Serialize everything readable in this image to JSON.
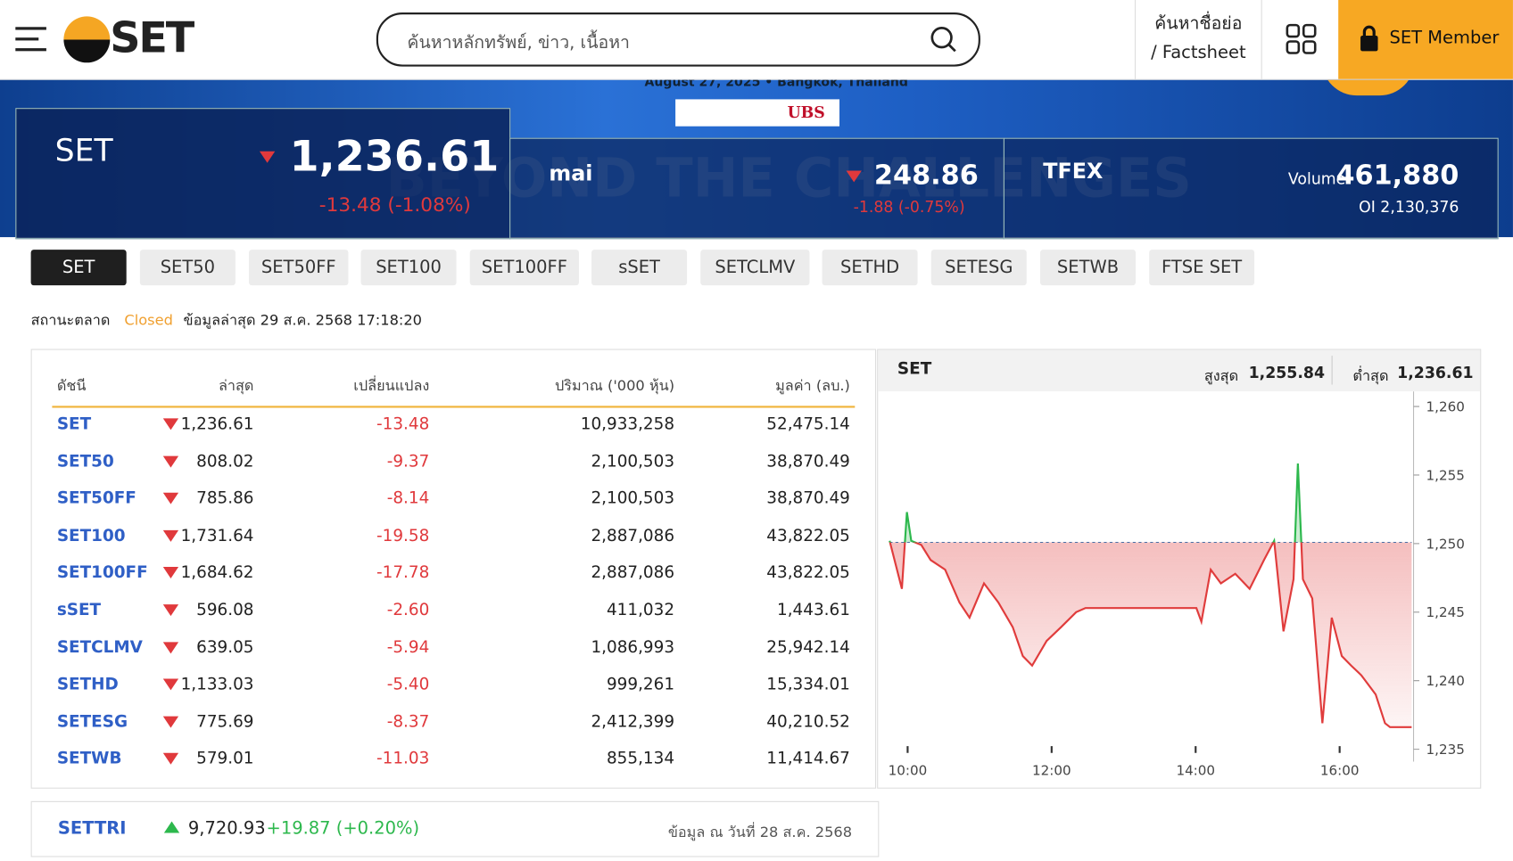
{
  "header": {
    "logo": "SET",
    "search_placeholder": "ค้นหาหลักทรัพย์, ข่าว, เนื้อหา",
    "factsheet_line1": "ค้นหาชื่อย่อ",
    "factsheet_line2": "/ Factsheet",
    "member": "SET Member"
  },
  "banner": {
    "event_date": "August 27, 2025 • Bangkok, Thailand",
    "sponsor": "UBS",
    "theme": "BEYOND THE CHALLENGES"
  },
  "indices_summary": {
    "set": {
      "name": "SET",
      "value": "1,236.61",
      "change": "-13.48 (-1.08%)"
    },
    "mai": {
      "name": "mai",
      "value": "248.86",
      "change": "-1.88 (-0.75%)"
    },
    "tfex": {
      "name": "TFEX",
      "volume_label": "Volume",
      "volume": "461,880",
      "oi": "OI 2,130,376"
    }
  },
  "tabs": [
    "SET",
    "SET50",
    "SET50FF",
    "SET100",
    "SET100FF",
    "sSET",
    "SETCLMV",
    "SETHD",
    "SETESG",
    "SETWB",
    "FTSE SET"
  ],
  "status": {
    "label": "สถานะตลาด",
    "state": "Closed",
    "updated": "ข้อมูลล่าสุด 29 ส.ค. 2568 17:18:20"
  },
  "table": {
    "headers": [
      "ดัชนี",
      "ล่าสุด",
      "เปลี่ยนแปลง",
      "ปริมาณ ('000 หุ้น)",
      "มูลค่า (ลบ.)"
    ],
    "rows": [
      [
        "SET",
        "1,236.61",
        "-13.48",
        "10,933,258",
        "52,475.14"
      ],
      [
        "SET50",
        "808.02",
        "-9.37",
        "2,100,503",
        "38,870.49"
      ],
      [
        "SET50FF",
        "785.86",
        "-8.14",
        "2,100,503",
        "38,870.49"
      ],
      [
        "SET100",
        "1,731.64",
        "-19.58",
        "2,887,086",
        "43,822.05"
      ],
      [
        "SET100FF",
        "1,684.62",
        "-17.78",
        "2,887,086",
        "43,822.05"
      ],
      [
        "sSET",
        "596.08",
        "-2.60",
        "411,032",
        "1,443.61"
      ],
      [
        "SETCLMV",
        "639.05",
        "-5.94",
        "1,086,993",
        "25,942.14"
      ],
      [
        "SETHD",
        "1,133.03",
        "-5.40",
        "999,261",
        "15,334.01"
      ],
      [
        "SETESG",
        "775.69",
        "-8.37",
        "2,412,399",
        "40,210.52"
      ],
      [
        "SETWB",
        "579.01",
        "-11.03",
        "855,134",
        "11,414.67"
      ]
    ]
  },
  "chart_data": {
    "type": "line",
    "title": "SET",
    "high_label": "สูงสุด",
    "high": "1,255.84",
    "low_label": "ต่ำสุด",
    "low": "1,236.61",
    "x": [
      9.75,
      9.92,
      9.99,
      10.05,
      10.19,
      10.32,
      10.52,
      10.72,
      10.86,
      11.06,
      11.26,
      11.46,
      11.6,
      11.73,
      11.93,
      12.13,
      12.34,
      12.47,
      14.01,
      14.08,
      14.21,
      14.35,
      14.55,
      14.75,
      14.95,
      15.09,
      15.22,
      15.36,
      15.42,
      15.49,
      15.62,
      15.76,
      15.89,
      16.03,
      16.16,
      16.3,
      16.5,
      16.63,
      16.7,
      17.0
    ],
    "values": [
      1250.2,
      1246.7,
      1252.3,
      1250.2,
      1249.9,
      1248.8,
      1248.1,
      1245.7,
      1244.6,
      1247.1,
      1245.7,
      1243.9,
      1241.8,
      1241.1,
      1242.9,
      1243.9,
      1245.0,
      1245.3,
      1245.3,
      1244.3,
      1248.1,
      1247.1,
      1247.8,
      1246.7,
      1248.8,
      1250.2,
      1243.6,
      1247.4,
      1255.84,
      1247.4,
      1246.0,
      1236.9,
      1244.6,
      1241.8,
      1241.1,
      1240.4,
      1239.0,
      1236.9,
      1236.61,
      1236.61
    ],
    "color": "#e03c3c",
    "up_color": "#2db84d",
    "reference": 1250.09,
    "xlim": [
      9.75,
      17.0
    ],
    "ylim": [
      1234.1,
      1261.1
    ],
    "xticks": [
      {
        "value": 10,
        "label": "10:00"
      },
      {
        "value": 12,
        "label": "12:00"
      },
      {
        "value": 14,
        "label": "14:00"
      },
      {
        "value": 16,
        "label": "16:00"
      }
    ],
    "yticks": [
      {
        "value": 1235,
        "label": "1,235"
      },
      {
        "value": 1240,
        "label": "1,240"
      },
      {
        "value": 1245,
        "label": "1,245"
      },
      {
        "value": 1250,
        "label": "1,250"
      },
      {
        "value": 1255,
        "label": "1,255"
      },
      {
        "value": 1260,
        "label": "1,260"
      }
    ]
  },
  "settri": {
    "name": "SETTRI",
    "value": "9,720.93",
    "change": "+19.87 (+0.20%)",
    "note": "ข้อมูล ณ วันที่ 28 ส.ค. 2568"
  }
}
